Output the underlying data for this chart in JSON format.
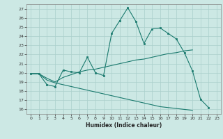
{
  "xlabel": "Humidex (Indice chaleur)",
  "bg_color": "#cce8e4",
  "grid_color": "#aacfcb",
  "line_color": "#1a7a6e",
  "xlim": [
    -0.5,
    23.5
  ],
  "ylim": [
    15.5,
    27.5
  ],
  "xticks": [
    0,
    1,
    2,
    3,
    4,
    5,
    6,
    7,
    8,
    9,
    10,
    11,
    12,
    13,
    14,
    15,
    16,
    17,
    18,
    19,
    20,
    21,
    22,
    23
  ],
  "yticks": [
    16,
    17,
    18,
    19,
    20,
    21,
    22,
    23,
    24,
    25,
    26,
    27
  ],
  "line1_x": [
    0,
    1,
    2,
    3,
    4,
    5,
    6,
    7,
    8,
    9,
    10,
    11,
    12,
    13,
    14,
    15,
    16,
    17,
    18,
    19,
    20,
    21,
    22
  ],
  "line1_y": [
    19.9,
    19.9,
    18.7,
    18.5,
    20.3,
    20.1,
    20.0,
    21.7,
    20.0,
    19.7,
    24.3,
    25.7,
    27.1,
    25.6,
    23.2,
    24.8,
    24.9,
    24.3,
    23.7,
    22.2,
    20.2,
    17.1,
    16.2
  ],
  "line2_x": [
    0,
    1,
    2,
    3,
    4,
    5,
    6,
    7,
    8,
    9,
    10,
    11,
    12,
    13,
    14,
    15,
    16,
    17,
    18,
    19,
    20
  ],
  "line2_y": [
    19.9,
    19.9,
    19.4,
    19.0,
    19.5,
    19.8,
    20.1,
    20.3,
    20.4,
    20.6,
    20.8,
    21.0,
    21.2,
    21.4,
    21.5,
    21.7,
    21.9,
    22.1,
    22.2,
    22.4,
    22.5
  ],
  "line3_x": [
    0,
    1,
    2,
    3,
    4,
    5,
    6,
    7,
    8,
    9,
    10,
    11,
    12,
    13,
    14,
    15,
    16,
    17,
    18,
    19,
    20
  ],
  "line3_y": [
    19.9,
    19.9,
    19.2,
    18.9,
    18.7,
    18.5,
    18.3,
    18.1,
    17.9,
    17.7,
    17.5,
    17.3,
    17.1,
    16.9,
    16.7,
    16.5,
    16.3,
    16.2,
    16.1,
    16.0,
    15.9
  ]
}
